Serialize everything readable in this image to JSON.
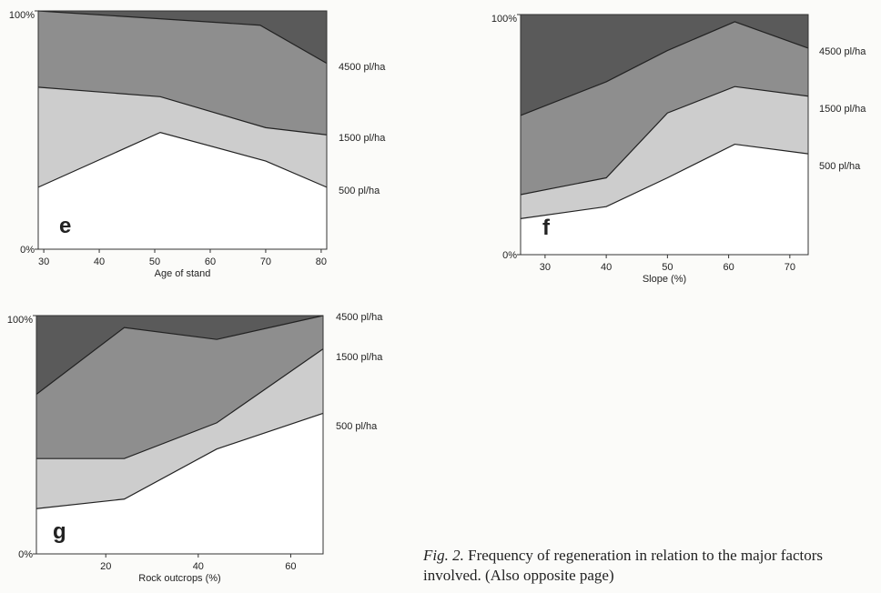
{
  "colors": {
    "top": "#5a5a5a",
    "mid": "#8e8e8e",
    "low": "#cdcdcd",
    "base": "#ffffff"
  },
  "chart_data": [
    {
      "type": "area",
      "panel": "e",
      "xlabel": "Age of stand",
      "ylabel": "",
      "y_ticks": [
        "0%",
        "100%"
      ],
      "x_ticks": [
        30,
        40,
        50,
        60,
        70,
        80
      ],
      "xlim": [
        29,
        81
      ],
      "ylim": [
        0,
        100
      ],
      "series": [
        {
          "name": "500 pl/ha",
          "x": [
            29,
            51,
            70,
            81
          ],
          "values": [
            26,
            49,
            37,
            26
          ]
        },
        {
          "name": "1500 pl/ha",
          "x": [
            29,
            51,
            70,
            81
          ],
          "values": [
            68,
            64,
            51,
            48
          ]
        },
        {
          "name": "4500 pl/ha",
          "x": [
            29,
            69,
            81
          ],
          "values": [
            100,
            94,
            78
          ]
        }
      ],
      "series_labels": [
        "4500 pl/ha",
        "1500 pl/ha",
        "500 pl/ha"
      ]
    },
    {
      "type": "area",
      "panel": "f",
      "xlabel": "Slope (%)",
      "ylabel": "",
      "y_ticks": [
        "0%",
        "100%"
      ],
      "x_ticks": [
        30,
        40,
        50,
        60,
        70
      ],
      "xlim": [
        26,
        73
      ],
      "ylim": [
        0,
        100
      ],
      "series": [
        {
          "name": "500 pl/ha",
          "x": [
            26,
            40,
            50,
            61,
            73
          ],
          "values": [
            15,
            20,
            32,
            46,
            42
          ]
        },
        {
          "name": "1500 pl/ha",
          "x": [
            26,
            40,
            50,
            61,
            73
          ],
          "values": [
            25,
            32,
            59,
            70,
            66
          ]
        },
        {
          "name": "4500 pl/ha",
          "x": [
            26,
            40,
            50,
            61,
            73
          ],
          "values": [
            58,
            72,
            85,
            97,
            86
          ]
        }
      ],
      "series_labels": [
        "4500 pl/ha",
        "1500 pl/ha",
        "500 pl/ha"
      ]
    },
    {
      "type": "area",
      "panel": "g",
      "xlabel": "Rock outcrops (%)",
      "ylabel": "",
      "y_ticks": [
        "0%",
        "100%"
      ],
      "x_ticks": [
        20,
        40,
        60
      ],
      "xlim": [
        5,
        67
      ],
      "ylim": [
        0,
        100
      ],
      "series": [
        {
          "name": "500 pl/ha",
          "x": [
            5,
            24,
            44,
            67
          ],
          "values": [
            19,
            23,
            44,
            59
          ]
        },
        {
          "name": "1500 pl/ha",
          "x": [
            5,
            24,
            44,
            67
          ],
          "values": [
            40,
            40,
            55,
            86
          ]
        },
        {
          "name": "4500 pl/ha",
          "x": [
            5,
            24,
            44,
            67
          ],
          "values": [
            67,
            95,
            90,
            100
          ]
        }
      ],
      "series_labels": [
        "4500 pl/ha",
        "1500 pl/ha",
        "500 pl/ha"
      ]
    }
  ],
  "caption": {
    "fig": "Fig. 2.",
    "text": " Frequency of regeneration in relation to the major factors involved. (Also opposite page)"
  }
}
